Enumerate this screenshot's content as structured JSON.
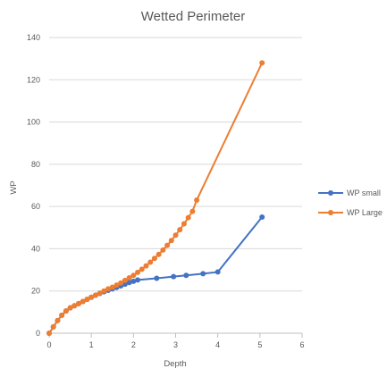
{
  "chart_data": {
    "type": "scatter",
    "title": "Wetted Perimeter",
    "xlabel": "Depth",
    "ylabel": "WP",
    "xlim": [
      0,
      6
    ],
    "ylim": [
      0,
      140
    ],
    "xticks": [
      0,
      1,
      2,
      3,
      4,
      5,
      6
    ],
    "yticks": [
      0,
      20,
      40,
      60,
      80,
      100,
      120,
      140
    ],
    "grid": "horizontal",
    "legend_position": "right",
    "series": [
      {
        "name": "WP small",
        "color": "#4472C4",
        "x": [
          0,
          0.1,
          0.2,
          0.3,
          0.4,
          0.5,
          0.6,
          0.7,
          0.8,
          0.9,
          1.0,
          1.1,
          1.2,
          1.3,
          1.4,
          1.5,
          1.6,
          1.7,
          1.8,
          1.9,
          2.0,
          2.1,
          2.55,
          2.95,
          3.25,
          3.65,
          4.0,
          5.05
        ],
        "y": [
          0,
          3,
          6,
          8.5,
          10.5,
          12,
          13,
          14,
          15,
          16,
          17,
          18,
          18.8,
          19.6,
          20.3,
          21,
          21.7,
          22.4,
          23.2,
          24,
          24.6,
          25.2,
          26,
          26.8,
          27.4,
          28.2,
          29,
          55
        ]
      },
      {
        "name": "WP Large",
        "color": "#ED7D31",
        "x": [
          0,
          0.1,
          0.2,
          0.3,
          0.4,
          0.5,
          0.6,
          0.7,
          0.8,
          0.9,
          1.0,
          1.1,
          1.2,
          1.3,
          1.4,
          1.5,
          1.6,
          1.7,
          1.8,
          1.9,
          2.0,
          2.1,
          2.2,
          2.3,
          2.4,
          2.5,
          2.6,
          2.7,
          2.8,
          2.9,
          3.0,
          3.1,
          3.2,
          3.3,
          3.4,
          3.5,
          5.05
        ],
        "y": [
          0,
          3,
          6,
          8.5,
          10.5,
          12,
          13,
          14,
          15,
          16,
          17,
          18,
          19,
          20,
          21,
          21.8,
          22.8,
          23.8,
          25,
          26.2,
          27.4,
          28.8,
          30.3,
          31.9,
          33.6,
          35.4,
          37.3,
          39.4,
          41.6,
          43.9,
          46.4,
          49,
          51.8,
          54.7,
          57.7,
          63,
          128
        ]
      }
    ]
  }
}
